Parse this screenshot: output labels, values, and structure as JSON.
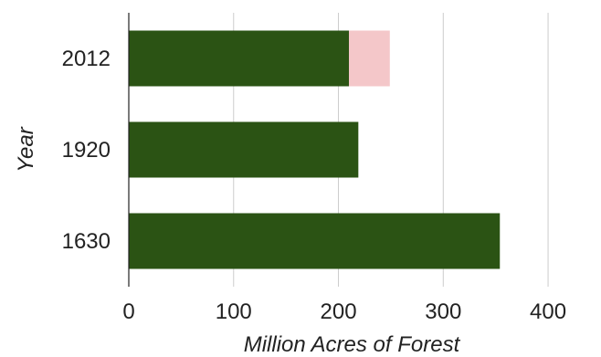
{
  "chart_data": {
    "type": "bar",
    "orientation": "horizontal",
    "stacked": true,
    "categories": [
      "1630",
      "1920",
      "2012"
    ],
    "series": [
      {
        "values": [
          354,
          219,
          210
        ],
        "color": "#2b5314"
      },
      {
        "values": [
          0,
          0,
          39
        ],
        "color": "#f4c7c9"
      }
    ],
    "xlabel": "Million Acres of Forest",
    "ylabel": "Year",
    "xlim": [
      0,
      420
    ],
    "xticks": [
      0,
      100,
      200,
      300,
      400
    ],
    "grid": "vertical",
    "legend": "none"
  }
}
